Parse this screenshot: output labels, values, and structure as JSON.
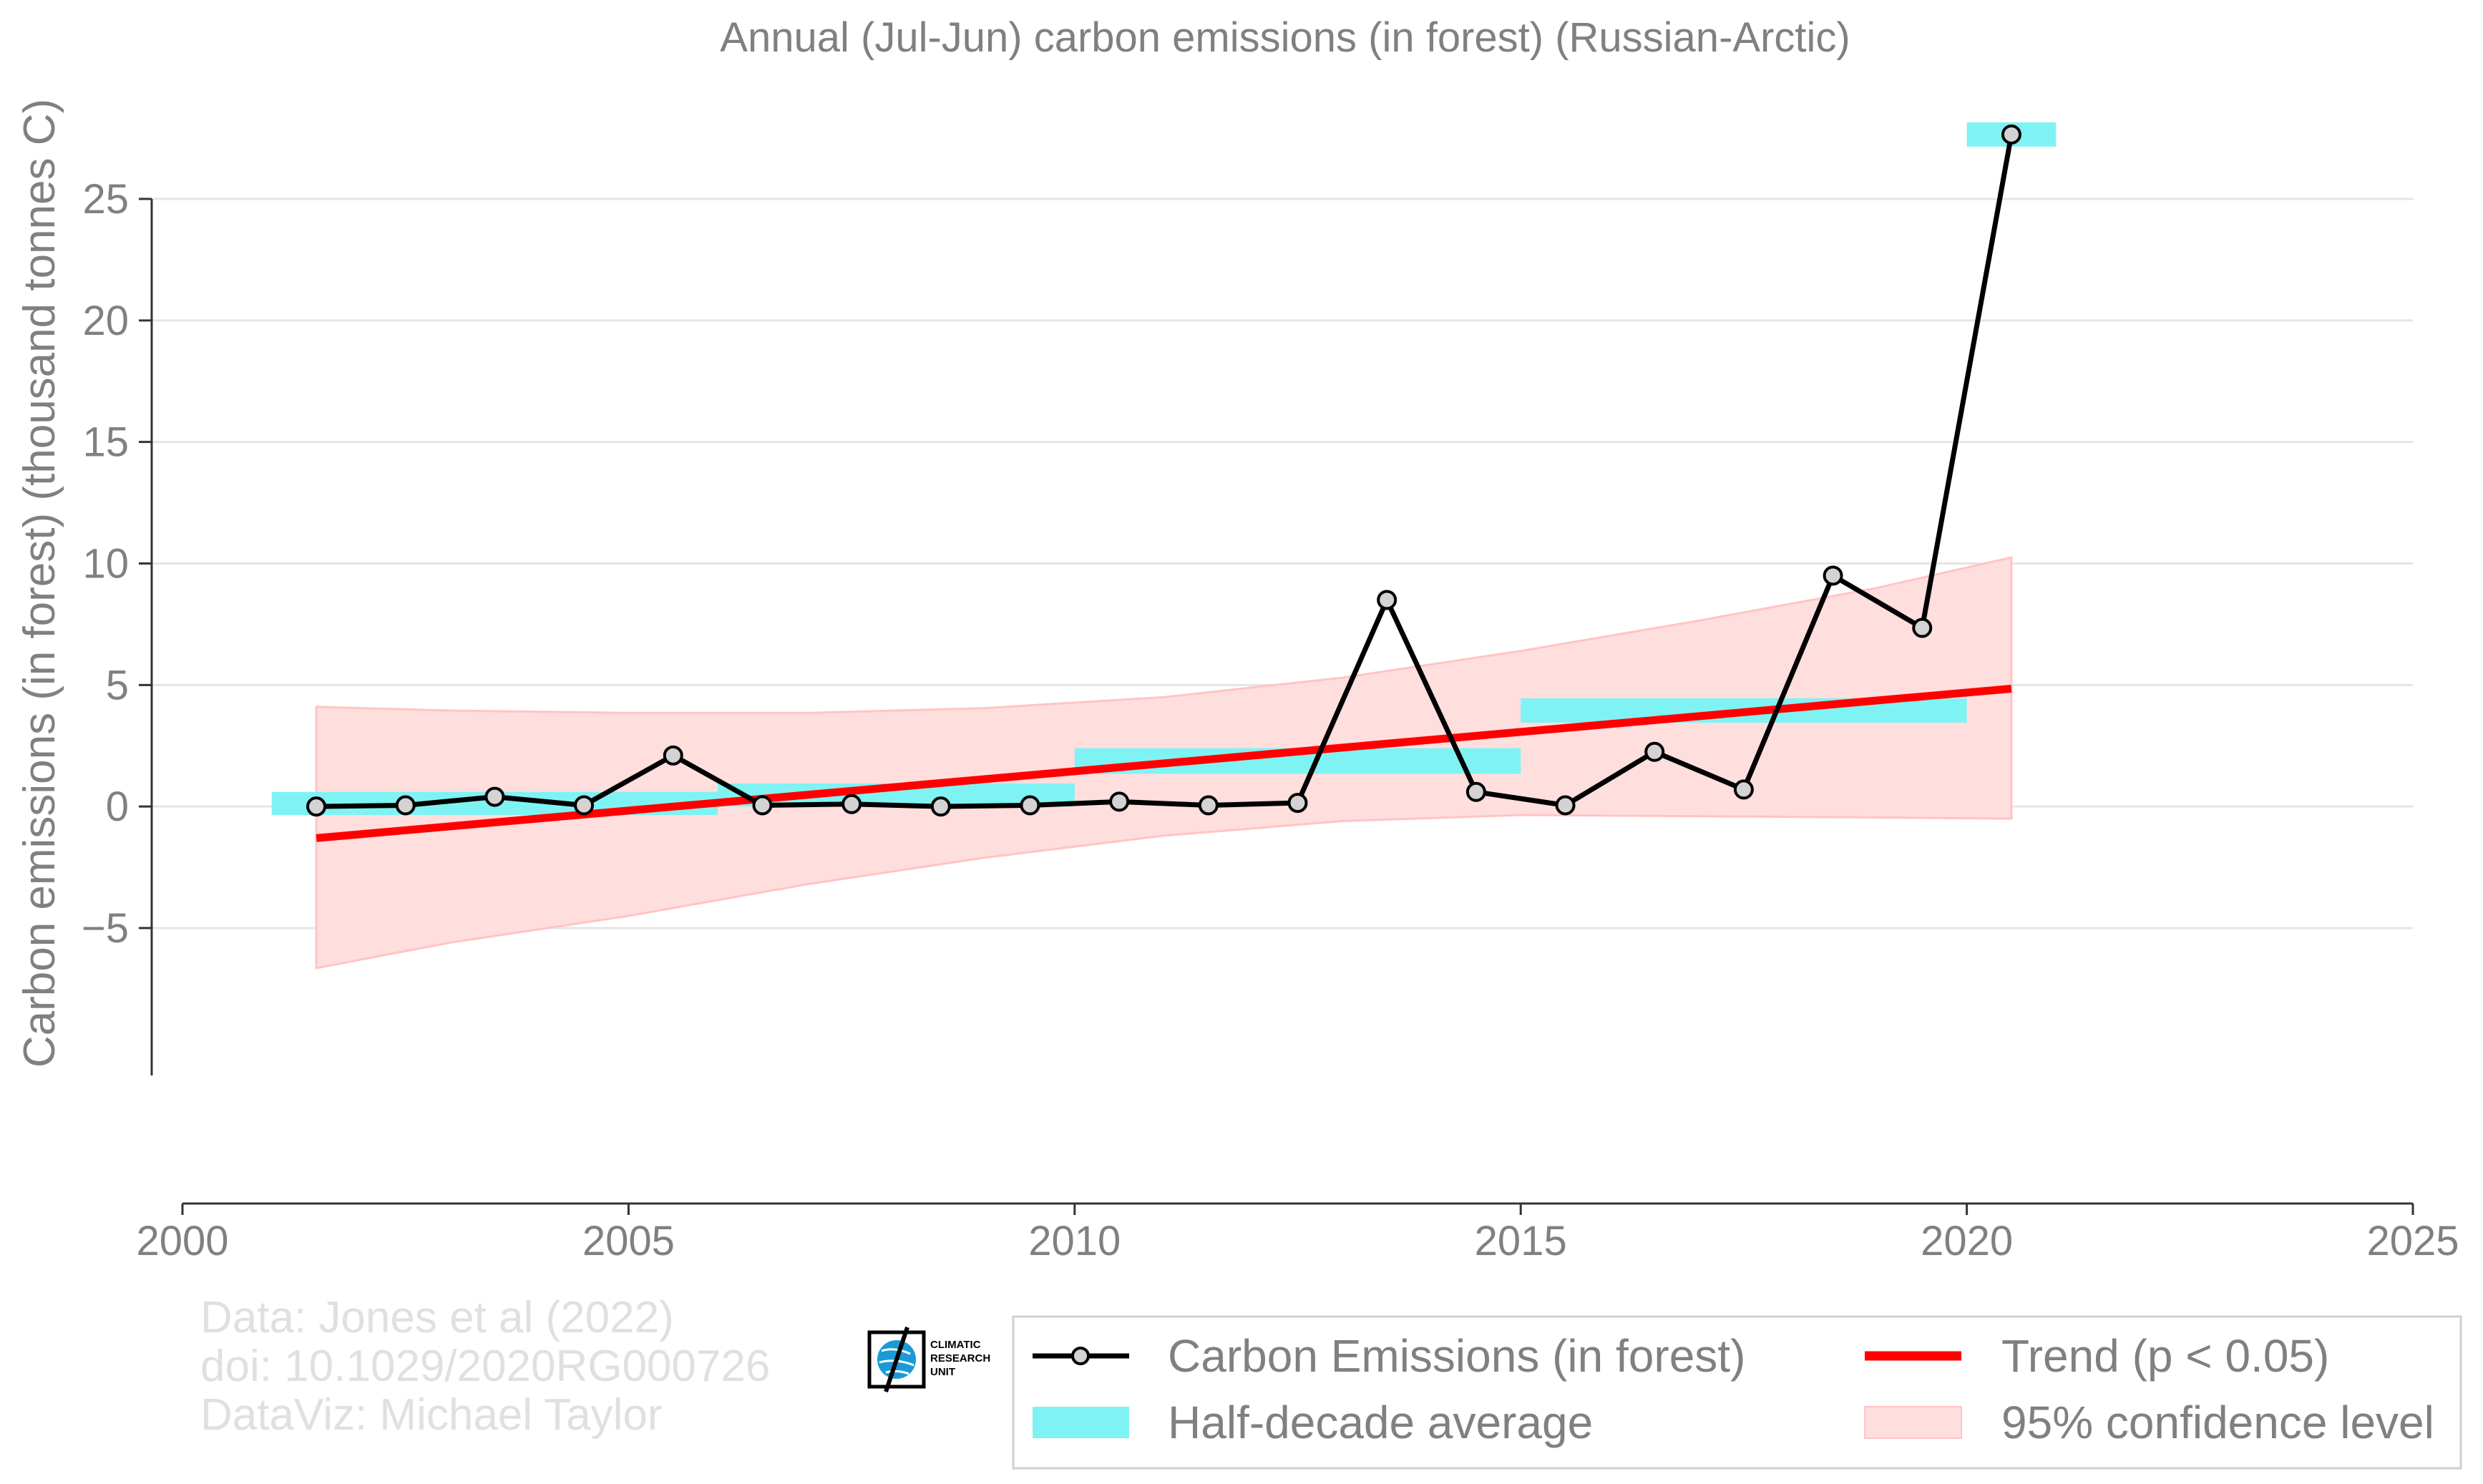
{
  "chart_data": {
    "type": "line",
    "title": "Annual (Jul-Jun) carbon emissions (in forest) (Russian-Arctic)",
    "ylabel": "Carbon emissions (in forest) (thousand tonnes C)",
    "xlabel": "",
    "xlim": [
      2000,
      2025
    ],
    "ylim": [
      -9.5,
      28.5
    ],
    "xticks": [
      "2000",
      "2005",
      "2010",
      "2015",
      "2020",
      "2025"
    ],
    "yticks": [
      "−5",
      "0",
      "5",
      "10",
      "15",
      "20",
      "25"
    ],
    "grid": "horizontal",
    "legend_position": "bottom-right",
    "series": [
      {
        "name": "Carbon Emissions (in forest)",
        "color": "#000000",
        "marker_fill": "#d3d3d3",
        "x": [
          2001.5,
          2002.5,
          2003.5,
          2004.5,
          2005.5,
          2006.5,
          2007.5,
          2008.5,
          2009.5,
          2010.5,
          2011.5,
          2012.5,
          2013.5,
          2014.5,
          2015.5,
          2016.5,
          2017.5,
          2018.5,
          2019.5,
          2020.5
        ],
        "y": [
          0.0,
          0.05,
          0.4,
          0.05,
          2.1,
          0.05,
          0.1,
          0.0,
          0.05,
          0.2,
          0.05,
          0.15,
          8.5,
          0.6,
          0.05,
          2.25,
          0.7,
          9.5,
          7.35,
          27.65
        ]
      },
      {
        "name": "Trend (p < 0.05)",
        "color": "#ff0000",
        "x": [
          2001.5,
          2020.5
        ],
        "y": [
          -1.3,
          4.85
        ]
      }
    ],
    "half_decade_average": {
      "name": "Half-decade average",
      "color": "#7ff3f3",
      "bands": [
        {
          "x0": 2001,
          "x1": 2006,
          "y0": -0.35,
          "y1": 0.6
        },
        {
          "x0": 2006,
          "x1": 2010,
          "y0": 0.0,
          "y1": 0.95
        },
        {
          "x0": 2010,
          "x1": 2015,
          "y0": 1.35,
          "y1": 2.4
        },
        {
          "x0": 2015,
          "x1": 2020,
          "y0": 3.45,
          "y1": 4.45
        },
        {
          "x0": 2020,
          "x1": 2021,
          "y0": 27.15,
          "y1": 28.15
        }
      ]
    },
    "confidence_band": {
      "name": "95% confidence level",
      "color": "#ffdede",
      "x": [
        2001.5,
        2003,
        2005,
        2007,
        2009,
        2011,
        2013,
        2015,
        2017,
        2019,
        2020.5
      ],
      "upper": [
        4.1,
        3.95,
        3.85,
        3.85,
        4.05,
        4.5,
        5.3,
        6.4,
        7.65,
        9.0,
        10.25
      ],
      "lower": [
        -6.65,
        -5.6,
        -4.5,
        -3.2,
        -2.1,
        -1.2,
        -0.6,
        -0.35,
        -0.4,
        -0.45,
        -0.5
      ]
    }
  },
  "credits": [
    "Data: Jones et al (2022)",
    "doi: 10.1029/2020RG000726",
    "DataViz: Michael Taylor"
  ],
  "logo": {
    "lines": [
      "CLIMATIC",
      "RESEARCH",
      "UNIT"
    ],
    "icon": "globe-icon"
  },
  "legend": {
    "items": [
      {
        "label": "Carbon Emissions (in forest)"
      },
      {
        "label": "Trend (p < 0.05)"
      },
      {
        "label": "Half-decade average"
      },
      {
        "label": "95% confidence level"
      }
    ]
  }
}
